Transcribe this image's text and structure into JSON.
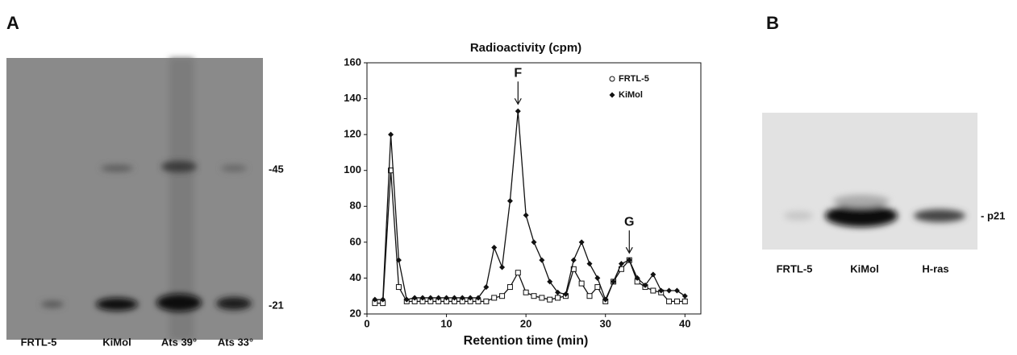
{
  "panel_a": {
    "label": "A",
    "gel": {
      "lanes": [
        "FRTL-5",
        "KiMol",
        "Ats 39°",
        "Ats 33°"
      ],
      "markers": [
        "-45",
        "-21"
      ]
    }
  },
  "panel_b": {
    "label": "B",
    "blot": {
      "lanes": [
        "FRTL-5",
        "KiMol",
        "H-ras"
      ],
      "marker": "- p21"
    }
  },
  "chart_data": {
    "type": "line",
    "title": "Radioactivity (cpm)",
    "x_label": "Retention time (min)",
    "x": [
      1,
      2,
      3,
      4,
      5,
      6,
      7,
      8,
      9,
      10,
      11,
      12,
      13,
      14,
      15,
      16,
      17,
      18,
      19,
      20,
      21,
      22,
      23,
      24,
      25,
      26,
      27,
      28,
      29,
      30,
      31,
      32,
      33,
      34,
      35,
      36,
      37,
      38,
      39,
      40
    ],
    "series": [
      {
        "name": "FRTL-5",
        "color": "#111111",
        "marker": "circle-open",
        "values": [
          26,
          26,
          100,
          35,
          27,
          27,
          27,
          27,
          27,
          27,
          27,
          27,
          27,
          27,
          27,
          29,
          30,
          35,
          43,
          32,
          30,
          29,
          28,
          29,
          30,
          45,
          37,
          30,
          35,
          27,
          38,
          45,
          50,
          38,
          35,
          33,
          32,
          27,
          27,
          27
        ]
      },
      {
        "name": "KiMol",
        "color": "#111111",
        "marker": "diamond",
        "values": [
          28,
          28,
          120,
          50,
          28,
          29,
          29,
          29,
          29,
          29,
          29,
          29,
          29,
          29,
          35,
          57,
          46,
          83,
          133,
          75,
          60,
          50,
          38,
          32,
          31,
          50,
          60,
          48,
          40,
          28,
          38,
          48,
          50,
          40,
          36,
          42,
          33,
          33,
          33,
          30
        ]
      }
    ],
    "annotations": [
      {
        "text": "F",
        "x": 19,
        "y": 137
      },
      {
        "text": "G",
        "x": 33,
        "y": 54
      }
    ],
    "xlim": [
      0,
      42
    ],
    "xticks": [
      0,
      10,
      20,
      30,
      40
    ],
    "ylim": [
      20,
      160
    ],
    "yticks": [
      20,
      40,
      60,
      80,
      100,
      120,
      140,
      160
    ],
    "legend": "upper right"
  }
}
